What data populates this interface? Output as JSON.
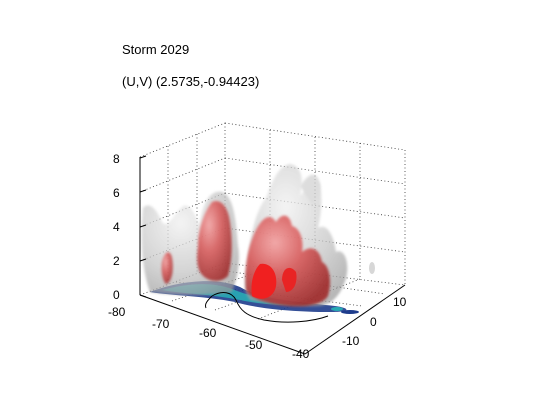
{
  "figure": {
    "title": "Storm 2029",
    "subtitle": "(U,V) (2.5735,-0.94423)"
  },
  "chart_data": {
    "type": "3d-isosurface",
    "title": "Storm 2029",
    "subtitle": "(U,V) (2.5735,-0.94423)",
    "x_ticks": [
      "-80",
      "-70",
      "-60",
      "-50",
      "-40"
    ],
    "y_ticks": [
      "-10",
      "0",
      "10"
    ],
    "z_ticks": [
      "0",
      "2",
      "4",
      "6",
      "8"
    ],
    "xlim": [
      -80,
      -40
    ],
    "ylim": [
      -15,
      15
    ],
    "zlim": [
      0,
      8
    ],
    "grid": true,
    "box": true,
    "surfaces": [
      {
        "color": "#c8c8c8",
        "note": "translucent grey outer isosurface"
      },
      {
        "color": "#d23c3c",
        "note": "red inner isosurface"
      },
      {
        "color": "#1e3c8c",
        "note": "dark blue base layer"
      },
      {
        "color": "#28aab4",
        "note": "cyan base layer"
      }
    ],
    "annotations": [
      "black track curve near base"
    ]
  }
}
